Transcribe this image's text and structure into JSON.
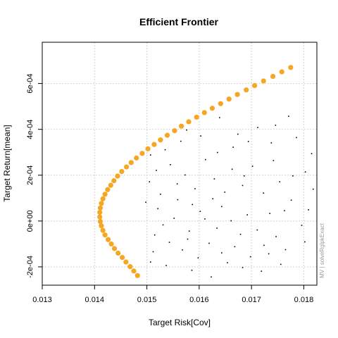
{
  "chart_data": {
    "type": "scatter",
    "title": "Efficient Frontier",
    "xlabel": "Target Risk[Cov]",
    "ylabel": "Target Return[mean]",
    "caption": "MV | solveRglpkExact",
    "xlim": [
      0.013,
      0.01825
    ],
    "ylim": [
      -0.00028,
      0.00078
    ],
    "grid": true,
    "x_ticks": [
      {
        "value": 0.013,
        "label": "0.013"
      },
      {
        "value": 0.014,
        "label": "0.014"
      },
      {
        "value": 0.015,
        "label": "0.015"
      },
      {
        "value": 0.016,
        "label": "0.016"
      },
      {
        "value": 0.017,
        "label": "0.017"
      },
      {
        "value": 0.018,
        "label": "0.018"
      }
    ],
    "y_ticks": [
      {
        "value": -0.0002,
        "label": "-2e-04"
      },
      {
        "value": 0.0,
        "label": "0e+00"
      },
      {
        "value": 0.0002,
        "label": "2e-04"
      },
      {
        "value": 0.0004,
        "label": "4e-04"
      },
      {
        "value": 0.0006,
        "label": "6e-04"
      }
    ],
    "colors": {
      "frontier": "#f5a623",
      "portfolios": "#000000",
      "grid": "#d3d3d3",
      "frame": "#000000"
    },
    "series": [
      {
        "type": "frontier",
        "points": [
          [
            0.01482,
            -0.000238
          ],
          [
            0.01475,
            -0.000218
          ],
          [
            0.01468,
            -0.000199
          ],
          [
            0.0146,
            -0.000179
          ],
          [
            0.01453,
            -0.000159
          ],
          [
            0.01445,
            -0.00014
          ],
          [
            0.01438,
            -0.00012
          ],
          [
            0.01432,
            -0.0001
          ],
          [
            0.01426,
            -8.1e-05
          ],
          [
            0.0142,
            -6.1e-05
          ],
          [
            0.01416,
            -4.1e-05
          ],
          [
            0.01413,
            -2.1e-05
          ],
          [
            0.01411,
            -2e-06
          ],
          [
            0.0141,
            1.8e-05
          ],
          [
            0.0141,
            3.8e-05
          ],
          [
            0.01411,
            5.7e-05
          ],
          [
            0.01413,
            7.7e-05
          ],
          [
            0.01416,
            9.7e-05
          ],
          [
            0.0142,
            0.000117
          ],
          [
            0.01425,
            0.000137
          ],
          [
            0.01431,
            0.000156
          ],
          [
            0.01437,
            0.000176
          ],
          [
            0.01444,
            0.000196
          ],
          [
            0.01452,
            0.000216
          ],
          [
            0.01461,
            0.000236
          ],
          [
            0.0147,
            0.000255
          ],
          [
            0.0148,
            0.000275
          ],
          [
            0.01491,
            0.000295
          ],
          [
            0.01502,
            0.000315
          ],
          [
            0.01514,
            0.000334
          ],
          [
            0.01526,
            0.000354
          ],
          [
            0.01539,
            0.000374
          ],
          [
            0.01553,
            0.000394
          ],
          [
            0.01566,
            0.000414
          ],
          [
            0.0158,
            0.000433
          ],
          [
            0.01595,
            0.000453
          ],
          [
            0.0161,
            0.000473
          ],
          [
            0.01625,
            0.000492
          ],
          [
            0.01641,
            0.000512
          ],
          [
            0.01657,
            0.000532
          ],
          [
            0.01673,
            0.000552
          ],
          [
            0.0169,
            0.000572
          ],
          [
            0.01706,
            0.000591
          ],
          [
            0.01723,
            0.000611
          ],
          [
            0.01741,
            0.000631
          ],
          [
            0.01758,
            0.000651
          ],
          [
            0.01775,
            0.00067
          ]
        ]
      },
      {
        "type": "random_portfolios",
        "points": [
          [
            0.01683,
            0.000155
          ],
          [
            0.01724,
            -0.000106
          ],
          [
            0.01815,
            0.000294
          ],
          [
            0.01535,
            0.000311
          ],
          [
            0.01568,
            -0.000126
          ],
          [
            0.01663,
            0.000226
          ],
          [
            0.01634,
            -3.1e-05
          ],
          [
            0.01779,
            0.000197
          ],
          [
            0.01507,
            -0.000179
          ],
          [
            0.01771,
            0.000457
          ],
          [
            0.01602,
            4.2e-05
          ],
          [
            0.01581,
            -4.4e-05
          ],
          [
            0.01738,
            0.000341
          ],
          [
            0.01756,
            -0.000189
          ],
          [
            0.01518,
            0.000221
          ],
          [
            0.01674,
            0.000379
          ],
          [
            0.01619,
            -9.7e-05
          ],
          [
            0.01552,
            1.2e-05
          ],
          [
            0.01747,
            -6.8e-05
          ],
          [
            0.01498,
            8.2e-05
          ],
          [
            0.01643,
            6.3e-05
          ],
          [
            0.01803,
            0.000214
          ],
          [
            0.01565,
            0.000348
          ],
          [
            0.01612,
            0.000268
          ],
          [
            0.01698,
            -0.000156
          ],
          [
            0.01526,
            0.000117
          ],
          [
            0.01586,
            -0.000215
          ],
          [
            0.01763,
            4.5e-05
          ],
          [
            0.01654,
            -0.000182
          ],
          [
            0.01712,
            0.000408
          ],
          [
            0.01543,
            -9.3e-05
          ],
          [
            0.01629,
            0.000184
          ],
          [
            0.01692,
            2.7e-05
          ],
          [
            0.01796,
            -1.9e-05
          ],
          [
            0.01573,
            0.000201
          ],
          [
            0.01507,
            0.000288
          ],
          [
            0.01679,
            -5.8e-05
          ],
          [
            0.01742,
            0.000264
          ],
          [
            0.01639,
            0.000451
          ],
          [
            0.01559,
            9.3e-05
          ],
          [
            0.01818,
            0.000139
          ],
          [
            0.01598,
            -0.000161
          ],
          [
            0.01665,
            0.000322
          ],
          [
            0.01531,
            -1.7e-05
          ],
          [
            0.01723,
            0.000122
          ],
          [
            0.01786,
            0.000364
          ],
          [
            0.01611,
            9e-06
          ],
          [
            0.01683,
            -0.000203
          ],
          [
            0.01576,
            0.000397
          ],
          [
            0.01512,
            -0.000134
          ],
          [
            0.01733,
            -0.000143
          ],
          [
            0.01649,
            0.000126
          ],
          [
            0.01702,
            0.000239
          ],
          [
            0.01545,
            0.000246
          ],
          [
            0.01802,
            -9.1e-05
          ],
          [
            0.01623,
            -0.000244
          ],
          [
            0.01592,
            0.000141
          ],
          [
            0.01754,
            0.000171
          ],
          [
            0.01668,
            -0.000112
          ],
          [
            0.01521,
            5.4e-05
          ],
          [
            0.01711,
            -3.9e-05
          ],
          [
            0.01635,
            0.000299
          ],
          [
            0.01578,
            -7.9e-05
          ],
          [
            0.01776,
            9.1e-05
          ],
          [
            0.01694,
            0.000347
          ],
          [
            0.01505,
            0.000171
          ],
          [
            0.01661,
            1e-06
          ],
          [
            0.01746,
            0.000418
          ],
          [
            0.01603,
            0.000371
          ],
          [
            0.01537,
            -0.000194
          ],
          [
            0.01809,
            4.9e-05
          ],
          [
            0.01587,
            7.2e-05
          ],
          [
            0.01719,
            -0.000219
          ],
          [
            0.01643,
            -0.000139
          ],
          [
            0.01558,
            0.000162
          ],
          [
            0.01686,
            0.000197
          ],
          [
            0.01765,
            -0.000125
          ],
          [
            0.01515,
            -6.1e-05
          ],
          [
            0.01626,
            9.7e-05
          ],
          [
            0.01735,
            3.3e-05
          ]
        ]
      }
    ]
  }
}
